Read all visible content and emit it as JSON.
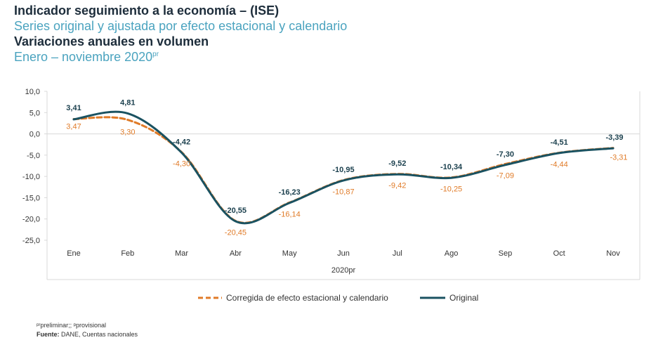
{
  "header": {
    "title": "Indicador seguimiento a la economía – (ISE)",
    "subtitle": "Series original y ajustada por efecto estacional y calendario",
    "subtitle2": "Variaciones anuales en volumen",
    "period": "Enero – noviembre 2020",
    "period_sup": "pr"
  },
  "chart_data": {
    "type": "line",
    "categories": [
      "Ene",
      "Feb",
      "Mar",
      "Abr",
      "May",
      "Jun",
      "Jul",
      "Ago",
      "Sep",
      "Oct",
      "Nov"
    ],
    "xlabel": "2020pr",
    "ylabel": "",
    "ylim": [
      -25,
      10
    ],
    "yticks": [
      "10,0",
      "5,0",
      "0,0",
      "-5,0",
      "-10,0",
      "-15,0",
      "-20,0",
      "-25,0"
    ],
    "grid": false,
    "legend_position": "bottom",
    "series": [
      {
        "name": "Corregida de efecto estacional y calendario",
        "color": "#e07b28",
        "dash": true,
        "values": [
          3.47,
          3.3,
          -4.3,
          -20.45,
          -16.14,
          -10.87,
          -9.42,
          -10.25,
          -7.09,
          -4.44,
          -3.31
        ],
        "labels": [
          "3,47",
          "3,30",
          "-4,30",
          "-20,45",
          "-16,14",
          "-10,87",
          "-9,42",
          "-10,25",
          "-7,09",
          "-4,44",
          "-3,31"
        ]
      },
      {
        "name": "Original",
        "color": "#1a5261",
        "dash": false,
        "values": [
          3.41,
          4.81,
          -4.42,
          -20.55,
          -16.23,
          -10.95,
          -9.52,
          -10.34,
          -7.3,
          -4.51,
          -3.39
        ],
        "labels": [
          "3,41",
          "4,81",
          "-4,42",
          "-20,55",
          "-16,23",
          "-10,95",
          "-9,52",
          "-10,34",
          "-7,30",
          "-4,51",
          "-3,39"
        ]
      }
    ]
  },
  "footer": {
    "note": "ᵖʳpreliminar;; ᵖprovisional",
    "source_label": "Fuente:",
    "source_text": " DANE, Cuentas nacionales"
  }
}
